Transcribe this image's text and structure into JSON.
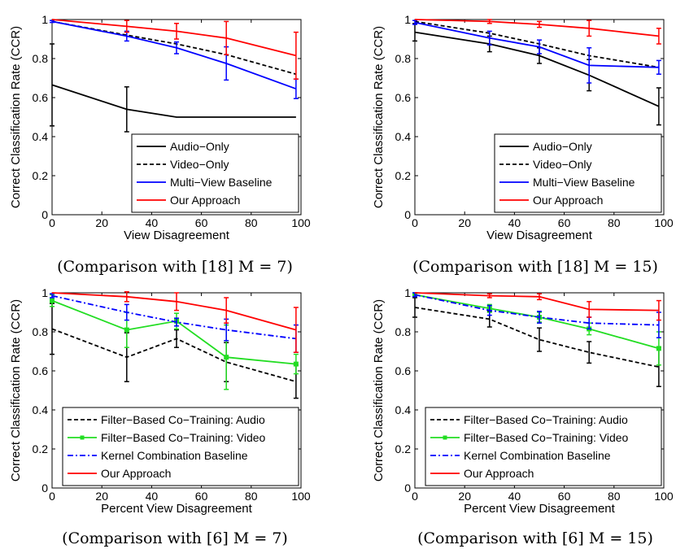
{
  "chart_data": [
    {
      "type": "line",
      "caption": "(Comparison with [18] M = 7)",
      "xlabel": "View Disagreement",
      "ylabel": "Correct Classification Rate (CCR)",
      "xlim": [
        0,
        100
      ],
      "ylim": [
        0,
        1
      ],
      "xticks": [
        0,
        20,
        40,
        60,
        80,
        100
      ],
      "yticks": [
        0,
        0.2,
        0.4,
        0.6,
        0.8,
        1
      ],
      "ytick_labels": [
        "0",
        "0.2",
        "0.4",
        "0.6",
        "0.8",
        "1"
      ],
      "legend": "bottom-right",
      "x": [
        0,
        30,
        50,
        70,
        98
      ],
      "series": [
        {
          "name": "Audio−Only",
          "color": "#000000",
          "dash": "solid",
          "values": [
            0.665,
            0.54,
            0.5,
            0.5,
            0.5
          ],
          "err": [
            0.21,
            0.115,
            0,
            0,
            0
          ]
        },
        {
          "name": "Video−Only",
          "color": "#000000",
          "dash": "dashed",
          "values": [
            0.99,
            0.92,
            0.875,
            0.82,
            0.72
          ],
          "err": [
            0,
            0,
            0,
            0,
            0
          ]
        },
        {
          "name": "Multi−View Baseline",
          "color": "#0000ff",
          "dash": "solid",
          "values": [
            0.99,
            0.915,
            0.855,
            0.775,
            0.645
          ],
          "err": [
            0.005,
            0.025,
            0.03,
            0.085,
            0.05
          ]
        },
        {
          "name": "Our Approach",
          "color": "#ff0000",
          "dash": "solid",
          "values": [
            1.0,
            0.965,
            0.94,
            0.905,
            0.815
          ],
          "err": [
            0,
            0.03,
            0.04,
            0.085,
            0.12
          ]
        }
      ]
    },
    {
      "type": "line",
      "caption": "(Comparison with [18] M = 15)",
      "xlabel": "View Disagreement",
      "ylabel": "Correct Classification Rate (CCR)",
      "xlim": [
        0,
        100
      ],
      "ylim": [
        0,
        1
      ],
      "xticks": [
        0,
        20,
        40,
        60,
        80,
        100
      ],
      "yticks": [
        0,
        0.2,
        0.4,
        0.6,
        0.8,
        1
      ],
      "ytick_labels": [
        "0",
        "0.2",
        "0.4",
        "0.6",
        "0.8",
        "1"
      ],
      "legend": "bottom-right",
      "x": [
        0,
        30,
        50,
        70,
        98
      ],
      "series": [
        {
          "name": "Audio−Only",
          "color": "#000000",
          "dash": "solid",
          "values": [
            0.935,
            0.875,
            0.815,
            0.715,
            0.555
          ],
          "err": [
            0.045,
            0.04,
            0.04,
            0.08,
            0.095
          ]
        },
        {
          "name": "Video−Only",
          "color": "#000000",
          "dash": "dashed",
          "values": [
            0.99,
            0.93,
            0.875,
            0.815,
            0.755
          ],
          "err": [
            0,
            0,
            0,
            0,
            0
          ]
        },
        {
          "name": "Multi−View Baseline",
          "color": "#0000ff",
          "dash": "solid",
          "values": [
            0.985,
            0.905,
            0.86,
            0.765,
            0.755
          ],
          "err": [
            0.01,
            0.035,
            0.035,
            0.09,
            0.035
          ]
        },
        {
          "name": "Our Approach",
          "color": "#ff0000",
          "dash": "solid",
          "values": [
            1.0,
            0.99,
            0.975,
            0.955,
            0.915
          ],
          "err": [
            0,
            0.01,
            0.015,
            0.04,
            0.04
          ]
        }
      ]
    },
    {
      "type": "line",
      "caption": "(Comparison with [6] M = 7)",
      "xlabel": "Percent View Disagreement",
      "ylabel": "Correct Classification Rate (CCR)",
      "xlim": [
        0,
        100
      ],
      "ylim": [
        0,
        1
      ],
      "xticks": [
        0,
        20,
        40,
        60,
        80,
        100
      ],
      "yticks": [
        0,
        0.2,
        0.4,
        0.6,
        0.8,
        1
      ],
      "ytick_labels": [
        "0",
        "0.2",
        "0.4",
        "0.6",
        "0.8",
        "1"
      ],
      "legend": "bottom-right",
      "x": [
        0,
        30,
        50,
        70,
        98
      ],
      "series": [
        {
          "name": "Filter−Based Co−Training: Audio",
          "color": "#000000",
          "dash": "dashed",
          "values": [
            0.815,
            0.67,
            0.765,
            0.645,
            0.545
          ],
          "err": [
            0.13,
            0.125,
            0.045,
            0.1,
            0.085
          ]
        },
        {
          "name": "Filter−Based Co−Training: Video",
          "color": "#22dd22",
          "dash": "solid",
          "marker": "square",
          "values": [
            0.96,
            0.81,
            0.855,
            0.67,
            0.635
          ],
          "err": [
            0.03,
            0.09,
            0.04,
            0.165,
            0.05
          ]
        },
        {
          "name": "Kernel Combination Baseline",
          "color": "#0000ff",
          "dash": "dashdot",
          "values": [
            0.985,
            0.9,
            0.85,
            0.81,
            0.765
          ],
          "err": [
            0.01,
            0.04,
            0.02,
            0.055,
            0.07
          ]
        },
        {
          "name": "Our Approach",
          "color": "#ff0000",
          "dash": "solid",
          "values": [
            1.0,
            0.98,
            0.955,
            0.91,
            0.81
          ],
          "err": [
            0,
            0.025,
            0.045,
            0.065,
            0.115
          ]
        }
      ]
    },
    {
      "type": "line",
      "caption": "(Comparison with [6] M = 15)",
      "xlabel": "Percent View Disagreement",
      "ylabel": "Correct Classification Rate (CCR)",
      "xlim": [
        0,
        100
      ],
      "ylim": [
        0,
        1
      ],
      "xticks": [
        0,
        20,
        40,
        60,
        80,
        100
      ],
      "yticks": [
        0,
        0.2,
        0.4,
        0.6,
        0.8,
        1
      ],
      "ytick_labels": [
        "0",
        "0.2",
        "0.4",
        "0.6",
        "0.8",
        "1"
      ],
      "legend": "bottom-right",
      "x": [
        0,
        30,
        50,
        70,
        98
      ],
      "series": [
        {
          "name": "Filter−Based Co−Training: Audio",
          "color": "#000000",
          "dash": "dashed",
          "values": [
            0.925,
            0.865,
            0.76,
            0.695,
            0.62
          ],
          "err": [
            0.05,
            0.04,
            0.06,
            0.055,
            0.1
          ]
        },
        {
          "name": "Filter−Based Co−Training: Video",
          "color": "#22dd22",
          "dash": "solid",
          "marker": "square",
          "values": [
            0.99,
            0.92,
            0.875,
            0.815,
            0.715
          ],
          "err": [
            0.01,
            0.02,
            0.025,
            0.03,
            0.085
          ]
        },
        {
          "name": "Kernel Combination Baseline",
          "color": "#0000ff",
          "dash": "dashdot",
          "values": [
            0.99,
            0.91,
            0.875,
            0.845,
            0.835
          ],
          "err": [
            0.01,
            0.025,
            0.03,
            0.03,
            0.065
          ]
        },
        {
          "name": "Our Approach",
          "color": "#ff0000",
          "dash": "solid",
          "values": [
            1.0,
            0.985,
            0.98,
            0.915,
            0.91
          ],
          "err": [
            0,
            0.01,
            0.015,
            0.04,
            0.05
          ]
        }
      ]
    }
  ]
}
